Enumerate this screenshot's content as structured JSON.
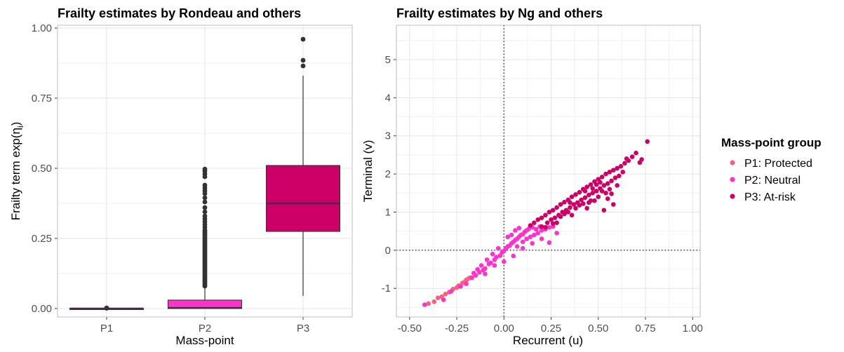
{
  "colors": {
    "p1": "#f7627b",
    "p2": "#ff33cc",
    "p3": "#cc0066",
    "median": "#4a2a44",
    "whisker": "#333333",
    "outlier": "#333333"
  },
  "chart_data": [
    {
      "type": "box",
      "title": "Frailty estimates by Rondeau and others",
      "xlabel": "Mass-point",
      "ylabel_prefix": "Frailty term exp(",
      "ylabel_symbol": "η",
      "ylabel_subscript": "i",
      "ylabel_suffix": ")",
      "categories": [
        "P1",
        "P2",
        "P3"
      ],
      "ylim": [
        -0.03,
        1.01
      ],
      "yticks": [
        0.0,
        0.25,
        0.5,
        0.75,
        1.0
      ],
      "ytick_labels": [
        "0.00",
        "0.25",
        "0.50",
        "0.75",
        "1.00"
      ],
      "grid": true,
      "boxes": [
        {
          "category": "P1",
          "color_key": "p1",
          "min": 0.0,
          "q1": 0.0,
          "median": 0.0,
          "q3": 0.0,
          "max": 0.0,
          "outliers": [
            0.001,
            0.002
          ]
        },
        {
          "category": "P2",
          "color_key": "p2",
          "min": 0.0,
          "q1": 0.0,
          "median": 0.002,
          "q3": 0.03,
          "max": 0.075,
          "outliers": [
            0.08,
            0.085,
            0.09,
            0.095,
            0.1,
            0.105,
            0.11,
            0.115,
            0.12,
            0.125,
            0.13,
            0.135,
            0.14,
            0.145,
            0.15,
            0.155,
            0.16,
            0.165,
            0.17,
            0.175,
            0.18,
            0.185,
            0.19,
            0.195,
            0.2,
            0.205,
            0.21,
            0.215,
            0.22,
            0.225,
            0.23,
            0.235,
            0.24,
            0.245,
            0.25,
            0.255,
            0.26,
            0.265,
            0.27,
            0.275,
            0.28,
            0.29,
            0.3,
            0.31,
            0.32,
            0.33,
            0.345,
            0.36,
            0.38,
            0.395,
            0.41,
            0.42,
            0.43,
            0.44,
            0.47,
            0.48,
            0.49,
            0.497
          ]
        },
        {
          "category": "P3",
          "color_key": "p3",
          "min": 0.045,
          "q1": 0.275,
          "median": 0.375,
          "q3": 0.51,
          "max": 0.83,
          "outliers": [
            0.865,
            0.885,
            0.96
          ]
        }
      ]
    },
    {
      "type": "scatter",
      "title": "Frailty estimates by Ng and others",
      "xlabel": "Recurrent (u)",
      "ylabel": "Terminal (v)",
      "xlim": [
        -0.57,
        1.04
      ],
      "ylim": [
        -1.75,
        5.9
      ],
      "xticks": [
        -0.5,
        -0.25,
        0.0,
        0.25,
        0.5,
        0.75,
        1.0
      ],
      "xtick_labels": [
        "-0.50",
        "-0.25",
        "0.00",
        "0.25",
        "0.50",
        "0.75",
        "1.00"
      ],
      "yticks": [
        -1,
        0,
        1,
        2,
        3,
        4,
        5
      ],
      "ytick_labels": [
        "-1",
        "0",
        "1",
        "2",
        "3",
        "4",
        "5"
      ],
      "reference_lines": {
        "x": 0,
        "y": 0,
        "style": "dotted"
      },
      "grid": true,
      "series": [
        {
          "name": "P1: Protected",
          "color_key": "p1",
          "points": [
            [
              -0.4,
              -1.4
            ],
            [
              -0.37,
              -1.35
            ],
            [
              -0.35,
              -1.25
            ],
            [
              -0.33,
              -1.22
            ],
            [
              -0.31,
              -1.15
            ],
            [
              -0.29,
              -1.1
            ],
            [
              -0.27,
              -1.02
            ],
            [
              -0.25,
              -0.98
            ],
            [
              -0.24,
              -0.93
            ],
            [
              -0.22,
              -0.86
            ],
            [
              -0.21,
              -0.84
            ],
            [
              -0.2,
              -0.78
            ],
            [
              -0.19,
              -0.75
            ],
            [
              -0.18,
              -0.72
            ]
          ]
        },
        {
          "name": "P2: Neutral",
          "color_key": "p2",
          "points": [
            [
              -0.42,
              -1.43
            ],
            [
              -0.32,
              -1.3
            ],
            [
              -0.28,
              -1.08
            ],
            [
              -0.23,
              -0.95
            ],
            [
              -0.2,
              -0.88
            ],
            [
              -0.17,
              -0.72
            ],
            [
              -0.15,
              -0.66
            ],
            [
              -0.13,
              -0.58
            ],
            [
              -0.11,
              -0.52
            ],
            [
              -0.1,
              -0.48
            ],
            [
              -0.08,
              -0.36
            ],
            [
              -0.07,
              -0.33
            ],
            [
              -0.05,
              -0.25
            ],
            [
              -0.04,
              -0.18
            ],
            [
              -0.02,
              -0.14
            ],
            [
              -0.01,
              -0.06
            ],
            [
              0.0,
              -0.02
            ],
            [
              0.01,
              0.05
            ],
            [
              0.02,
              0.1
            ],
            [
              0.03,
              0.12
            ],
            [
              0.04,
              0.18
            ],
            [
              0.05,
              0.22
            ],
            [
              0.06,
              0.27
            ],
            [
              0.07,
              0.3
            ],
            [
              0.08,
              0.35
            ],
            [
              0.09,
              0.4
            ],
            [
              0.1,
              0.42
            ],
            [
              0.11,
              0.48
            ],
            [
              0.12,
              0.52
            ],
            [
              0.13,
              0.55
            ],
            [
              0.14,
              0.62
            ],
            [
              0.15,
              0.6
            ],
            [
              0.07,
              0.1
            ],
            [
              0.1,
              0.22
            ],
            [
              0.12,
              0.3
            ],
            [
              0.14,
              0.35
            ],
            [
              0.16,
              0.4
            ],
            [
              0.18,
              0.45
            ],
            [
              0.2,
              0.52
            ],
            [
              0.22,
              0.55
            ],
            [
              0.24,
              0.6
            ],
            [
              0.26,
              0.62
            ],
            [
              0.04,
              0.4
            ],
            [
              0.06,
              0.52
            ],
            [
              0.08,
              0.58
            ],
            [
              0.02,
              0.35
            ],
            [
              -0.03,
              0.05
            ],
            [
              -0.06,
              -0.1
            ],
            [
              -0.09,
              -0.25
            ],
            [
              -0.12,
              -0.4
            ],
            [
              -0.14,
              -0.5
            ],
            [
              -0.16,
              -0.6
            ],
            [
              0.17,
              0.55
            ],
            [
              0.19,
              0.62
            ],
            [
              0.2,
              0.3
            ],
            [
              0.28,
              0.45
            ],
            [
              0.24,
              0.2
            ],
            [
              -0.1,
              -0.62
            ],
            [
              -0.05,
              -0.4
            ],
            [
              0.0,
              -0.3
            ],
            [
              0.05,
              -0.15
            ],
            [
              0.1,
              0.05
            ],
            [
              0.15,
              0.18
            ]
          ]
        },
        {
          "name": "P3: At-risk",
          "color_key": "p3",
          "points": [
            [
              0.14,
              0.65
            ],
            [
              0.16,
              0.72
            ],
            [
              0.18,
              0.8
            ],
            [
              0.2,
              0.85
            ],
            [
              0.22,
              0.92
            ],
            [
              0.24,
              1.0
            ],
            [
              0.26,
              1.05
            ],
            [
              0.28,
              1.12
            ],
            [
              0.3,
              1.2
            ],
            [
              0.32,
              1.26
            ],
            [
              0.34,
              1.32
            ],
            [
              0.36,
              1.4
            ],
            [
              0.38,
              1.46
            ],
            [
              0.4,
              1.52
            ],
            [
              0.42,
              1.6
            ],
            [
              0.44,
              1.66
            ],
            [
              0.46,
              1.72
            ],
            [
              0.48,
              1.8
            ],
            [
              0.5,
              1.86
            ],
            [
              0.52,
              1.92
            ],
            [
              0.54,
              2.0
            ],
            [
              0.56,
              2.05
            ],
            [
              0.58,
              2.1
            ],
            [
              0.2,
              0.62
            ],
            [
              0.23,
              0.72
            ],
            [
              0.25,
              0.8
            ],
            [
              0.27,
              0.85
            ],
            [
              0.29,
              0.92
            ],
            [
              0.31,
              1.0
            ],
            [
              0.33,
              1.05
            ],
            [
              0.35,
              1.12
            ],
            [
              0.37,
              1.2
            ],
            [
              0.39,
              1.25
            ],
            [
              0.41,
              1.32
            ],
            [
              0.43,
              1.38
            ],
            [
              0.45,
              1.45
            ],
            [
              0.47,
              1.5
            ],
            [
              0.49,
              1.55
            ],
            [
              0.51,
              1.62
            ],
            [
              0.53,
              1.7
            ],
            [
              0.55,
              1.75
            ],
            [
              0.57,
              1.82
            ],
            [
              0.59,
              1.9
            ],
            [
              0.3,
              0.88
            ],
            [
              0.34,
              1.0
            ],
            [
              0.38,
              1.1
            ],
            [
              0.42,
              1.22
            ],
            [
              0.46,
              1.3
            ],
            [
              0.5,
              1.4
            ],
            [
              0.54,
              1.5
            ],
            [
              0.52,
              1.55
            ],
            [
              0.56,
              1.6
            ],
            [
              0.6,
              1.7
            ],
            [
              0.55,
              1.35
            ],
            [
              0.57,
              1.48
            ],
            [
              0.6,
              2.15
            ],
            [
              0.62,
              2.2
            ],
            [
              0.64,
              2.28
            ],
            [
              0.66,
              2.35
            ],
            [
              0.68,
              2.45
            ],
            [
              0.7,
              2.55
            ],
            [
              0.73,
              2.38
            ],
            [
              0.72,
              2.3
            ],
            [
              0.76,
              2.85
            ],
            [
              0.63,
              2.05
            ],
            [
              0.61,
              1.95
            ],
            [
              0.58,
              1.2
            ],
            [
              0.65,
              2.4
            ],
            [
              0.53,
              1.05
            ],
            [
              0.48,
              1.3
            ],
            [
              0.44,
              1.1
            ],
            [
              0.36,
              0.92
            ],
            [
              0.28,
              0.72
            ],
            [
              0.22,
              0.6
            ],
            [
              0.26,
              0.7
            ],
            [
              0.32,
              0.95
            ],
            [
              0.4,
              1.18
            ],
            [
              0.45,
              1.25
            ],
            [
              0.35,
              1.25
            ],
            [
              0.43,
              1.55
            ],
            [
              0.49,
              1.72
            ],
            [
              0.51,
              1.78
            ],
            [
              0.47,
              1.62
            ]
          ]
        }
      ]
    }
  ],
  "legend": {
    "title": "Mass-point group",
    "items": [
      {
        "label": "P1: Protected",
        "color_key": "p1"
      },
      {
        "label": "P2: Neutral",
        "color_key": "p2"
      },
      {
        "label": "P3: At-risk",
        "color_key": "p3"
      }
    ]
  }
}
